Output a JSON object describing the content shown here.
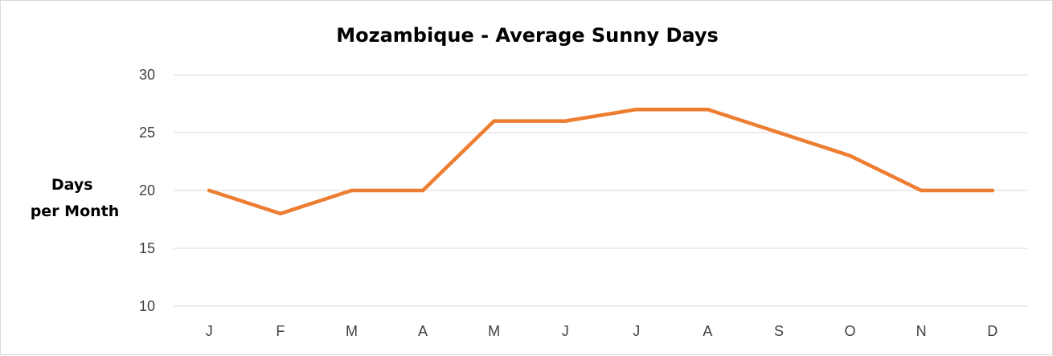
{
  "chart_data": {
    "type": "line",
    "title": "Mozambique - Average Sunny Days",
    "ylabel_lines": [
      "Days",
      "per Month"
    ],
    "xlabel": "",
    "categories": [
      "J",
      "F",
      "M",
      "A",
      "M",
      "J",
      "J",
      "A",
      "S",
      "O",
      "N",
      "D"
    ],
    "series": [
      {
        "values": [
          20,
          18,
          20,
          20,
          26,
          26,
          27,
          27,
          25,
          23,
          20,
          20
        ]
      }
    ],
    "ylim": [
      10,
      30
    ],
    "yticks": [
      10,
      15,
      20,
      25,
      30
    ],
    "grid": true,
    "legend": "none",
    "line_color": "#ED7D31",
    "grid_color": "#D9D9D9"
  }
}
